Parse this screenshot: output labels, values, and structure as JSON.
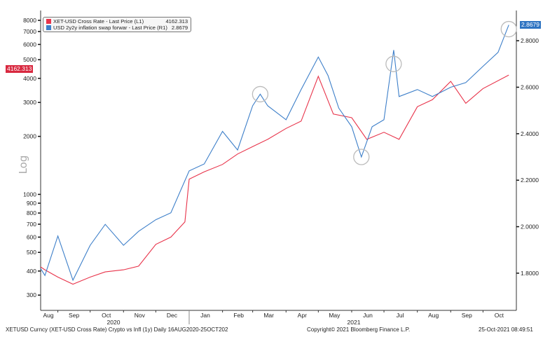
{
  "chart_data": {
    "type": "line",
    "title": "",
    "x_range": [
      "2020-08-16",
      "2021-11-01"
    ],
    "month_labels": [
      "Aug",
      "Sep",
      "Oct",
      "Nov",
      "Dec",
      "Jan",
      "Feb",
      "Mar",
      "Apr",
      "May",
      "Jun",
      "Jul",
      "Aug",
      "Sep",
      "Oct"
    ],
    "year_labels": [
      "2020",
      "2021"
    ],
    "left_axis": {
      "label": "Log",
      "scale": "log",
      "range": [
        250,
        9000
      ],
      "ticks": [
        300,
        400,
        500,
        600,
        700,
        800,
        900,
        1000,
        2000,
        3000,
        4000,
        5000,
        6000,
        7000,
        8000
      ]
    },
    "right_axis": {
      "scale": "linear",
      "range": [
        1.64,
        2.93
      ],
      "ticks": [
        "1.8000",
        "2.0000",
        "2.2000",
        "2.4000",
        "2.6000",
        "2.8000"
      ]
    },
    "grid": false,
    "legend_placement": "top-left",
    "series": [
      {
        "name": "XET-USD Cross Rate - Last Price (L1)",
        "last": "4162.313",
        "axis": "left",
        "color": "#e8334a",
        "points": [
          [
            "2020-08-16",
            420
          ],
          [
            "2020-08-20",
            406
          ],
          [
            "2020-09-01",
            372
          ],
          [
            "2020-09-15",
            342
          ],
          [
            "2020-10-01",
            372
          ],
          [
            "2020-10-15",
            396
          ],
          [
            "2020-11-01",
            406
          ],
          [
            "2020-11-15",
            424
          ],
          [
            "2020-12-01",
            550
          ],
          [
            "2020-12-15",
            600
          ],
          [
            "2020-12-28",
            720
          ],
          [
            "2021-01-01",
            1200
          ],
          [
            "2021-01-15",
            1310
          ],
          [
            "2021-02-01",
            1430
          ],
          [
            "2021-02-15",
            1620
          ],
          [
            "2021-03-01",
            1770
          ],
          [
            "2021-03-15",
            1930
          ],
          [
            "2021-04-01",
            2200
          ],
          [
            "2021-04-15",
            2400
          ],
          [
            "2021-05-01",
            4100
          ],
          [
            "2021-05-15",
            2610
          ],
          [
            "2021-06-01",
            2500
          ],
          [
            "2021-06-15",
            1930
          ],
          [
            "2021-07-01",
            2100
          ],
          [
            "2021-07-15",
            1930
          ],
          [
            "2021-08-01",
            2850
          ],
          [
            "2021-08-15",
            3100
          ],
          [
            "2021-09-01",
            3860
          ],
          [
            "2021-09-15",
            2970
          ],
          [
            "2021-10-01",
            3540
          ],
          [
            "2021-10-25",
            4162.313
          ]
        ]
      },
      {
        "name": "USD 2y2y inflation swap forwar - Last Price (R1)",
        "last": "2.8679",
        "axis": "right",
        "color": "#3d7fc9",
        "points": [
          [
            "2020-08-16",
            1.82
          ],
          [
            "2020-08-20",
            1.79
          ],
          [
            "2020-09-01",
            1.96
          ],
          [
            "2020-09-15",
            1.77
          ],
          [
            "2020-10-01",
            1.92
          ],
          [
            "2020-10-15",
            2.01
          ],
          [
            "2020-11-01",
            1.92
          ],
          [
            "2020-11-15",
            1.98
          ],
          [
            "2020-12-01",
            2.03
          ],
          [
            "2020-12-15",
            2.06
          ],
          [
            "2021-01-01",
            2.24
          ],
          [
            "2021-01-15",
            2.27
          ],
          [
            "2021-02-01",
            2.41
          ],
          [
            "2021-02-15",
            2.33
          ],
          [
            "2021-03-01",
            2.52
          ],
          [
            "2021-03-08",
            2.57
          ],
          [
            "2021-03-15",
            2.52
          ],
          [
            "2021-04-01",
            2.46
          ],
          [
            "2021-04-15",
            2.59
          ],
          [
            "2021-05-01",
            2.73
          ],
          [
            "2021-05-10",
            2.65
          ],
          [
            "2021-05-20",
            2.51
          ],
          [
            "2021-06-01",
            2.43
          ],
          [
            "2021-06-10",
            2.3
          ],
          [
            "2021-06-20",
            2.43
          ],
          [
            "2021-07-01",
            2.46
          ],
          [
            "2021-07-10",
            2.76
          ],
          [
            "2021-07-15",
            2.56
          ],
          [
            "2021-08-01",
            2.59
          ],
          [
            "2021-08-15",
            2.56
          ],
          [
            "2021-09-01",
            2.6
          ],
          [
            "2021-09-15",
            2.62
          ],
          [
            "2021-10-01",
            2.69
          ],
          [
            "2021-10-15",
            2.75
          ],
          [
            "2021-10-25",
            2.8679
          ]
        ]
      }
    ],
    "annotations": [
      {
        "shape": "circle",
        "date": "2021-03-08",
        "value": 2.57,
        "axis": "right"
      },
      {
        "shape": "circle",
        "date": "2021-06-10",
        "value": 2.3,
        "axis": "right"
      },
      {
        "shape": "circle",
        "date": "2021-07-10",
        "value": 2.7,
        "axis": "right"
      },
      {
        "shape": "circle",
        "date": "2021-10-25",
        "value": 2.85,
        "axis": "right"
      }
    ]
  },
  "footer": {
    "left": "XETUSD Curncy (XET-USD Cross Rate) Crypto vs Infl (1y)  Daily 16AUG2020-25OCT202",
    "center": "Copyright© 2021 Bloomberg Finance L.P.",
    "right": "25-Oct-2021 08:49:51"
  }
}
